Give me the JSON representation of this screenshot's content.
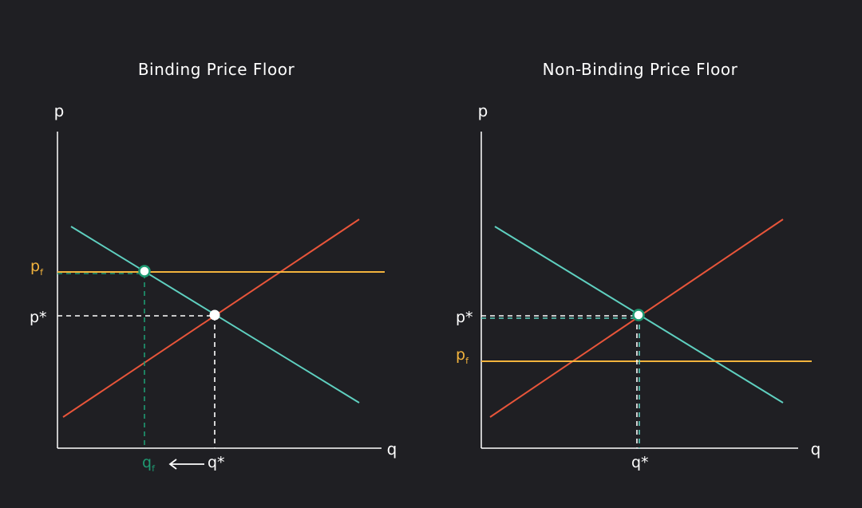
{
  "colors": {
    "background": "#1f1f23",
    "demand": "#5fd0c0",
    "supply": "#e8553a",
    "price_floor": "#f2b33d",
    "floor_quantity": "#1f9a72",
    "axes": "#ffffff"
  },
  "panels": [
    {
      "title": "Binding Price Floor",
      "y_axis": "p",
      "x_axis": "q",
      "labels": {
        "pf_base": "p",
        "pf_sub": "f",
        "pstar": "p*",
        "qf_base": "q",
        "qf_sub": "f",
        "qstar": "q*",
        "arrow": "⟵"
      }
    },
    {
      "title": "Non-Binding Price Floor",
      "y_axis": "p",
      "x_axis": "q",
      "labels": {
        "pstar": "p*",
        "pf_base": "p",
        "pf_sub": "f",
        "qstar": "q*"
      }
    }
  ]
}
